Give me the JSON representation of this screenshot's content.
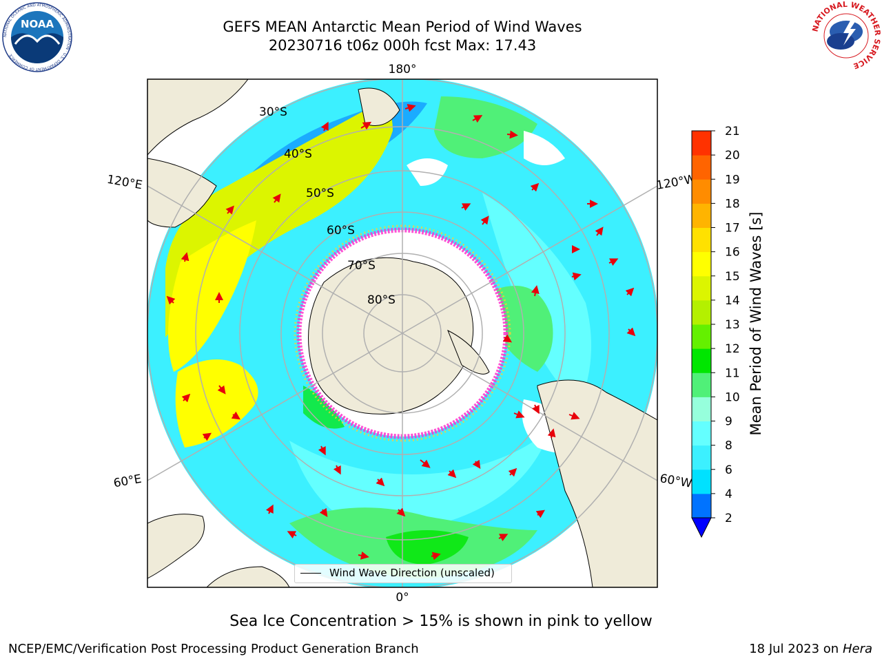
{
  "header": {
    "title_line1": "GEFS MEAN Antarctic Mean Period of Wind Waves",
    "title_line2": "20230716 t06z 000h fcst   Max: 17.43"
  },
  "map": {
    "projection": "south-polar stereographic",
    "parallels": [
      "30°S",
      "40°S",
      "50°S",
      "60°S",
      "70°S",
      "80°S"
    ],
    "meridians": {
      "top": "180°",
      "bottom": "0°",
      "upper_left": "120°E",
      "upper_right": "120°W",
      "lower_left": "60°E",
      "lower_right": "60°W"
    },
    "legend_label": "Wind Wave Direction (unscaled)",
    "land_color": "#efebd9",
    "ocean_missing_color": "#ffffff",
    "arrow_color": "#e8000b",
    "ice_edge_colors": [
      "#ff33cc",
      "#ffcc33"
    ]
  },
  "colorbar": {
    "title": "Mean Period of Wind Waves [s]",
    "ticks": [
      "2",
      "4",
      "6",
      "8",
      "9",
      "10",
      "11",
      "12",
      "13",
      "14",
      "15",
      "16",
      "17",
      "18",
      "19",
      "20",
      "21"
    ],
    "colors": [
      "#0073ff",
      "#00e1ff",
      "#3cf0ff",
      "#64ffff",
      "#96ffdc",
      "#50f078",
      "#00e600",
      "#64f000",
      "#b4f000",
      "#dcf500",
      "#ffff00",
      "#ffe100",
      "#ffb400",
      "#ff8c00",
      "#ff6400",
      "#ff3200",
      "#ff0000"
    ],
    "underflow_color": "#0000ff"
  },
  "notes": {
    "ice_note": "Sea Ice Concentration > 15% is shown in pink to yellow"
  },
  "footer": {
    "left": "NCEP/EMC/Verification Post Processing Product Generation Branch",
    "right_prefix": "18 Jul 2023 on ",
    "right_machine": "Hera"
  },
  "logos": {
    "noaa_text": "NOAA",
    "noaa_ring": "NATIONAL OCEANIC AND ATMOSPHERIC ADMINISTRATION · U.S. DEPARTMENT OF COMMERCE",
    "nws_ring": "NATIONAL WEATHER SERVICE"
  }
}
